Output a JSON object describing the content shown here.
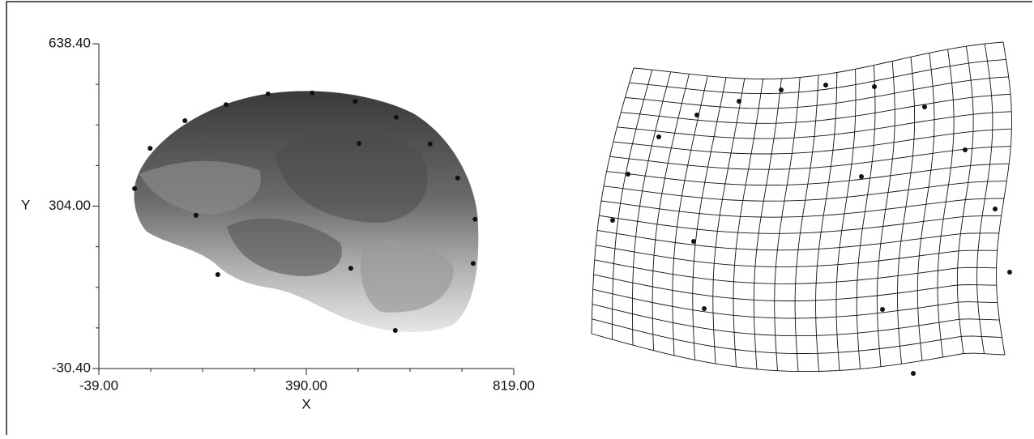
{
  "chart_data": {
    "type": "scatter",
    "x_label": "X",
    "y_label": "Y",
    "x": [
      35,
      67,
      139,
      224,
      311,
      402,
      491,
      576,
      646,
      703,
      739,
      735,
      574,
      482,
      207,
      162,
      499
    ],
    "values": [
      340,
      423,
      480,
      513,
      535,
      537,
      520,
      487,
      432,
      362,
      277,
      186,
      48,
      176,
      163,
      285,
      433
    ],
    "color": "#111111",
    "xlim": [
      -39,
      819
    ],
    "ylim": [
      -30.4,
      638.4
    ],
    "xticks": [
      {
        "value": -39,
        "label": "-39.00"
      },
      {
        "value": 390,
        "label": "390.00"
      },
      {
        "value": 819,
        "label": "819.00"
      }
    ],
    "yticks": [
      {
        "value": -30.4,
        "label": "-30.40"
      },
      {
        "value": 304,
        "label": "304.00"
      },
      {
        "value": 638.4,
        "label": "638.40"
      }
    ]
  }
}
